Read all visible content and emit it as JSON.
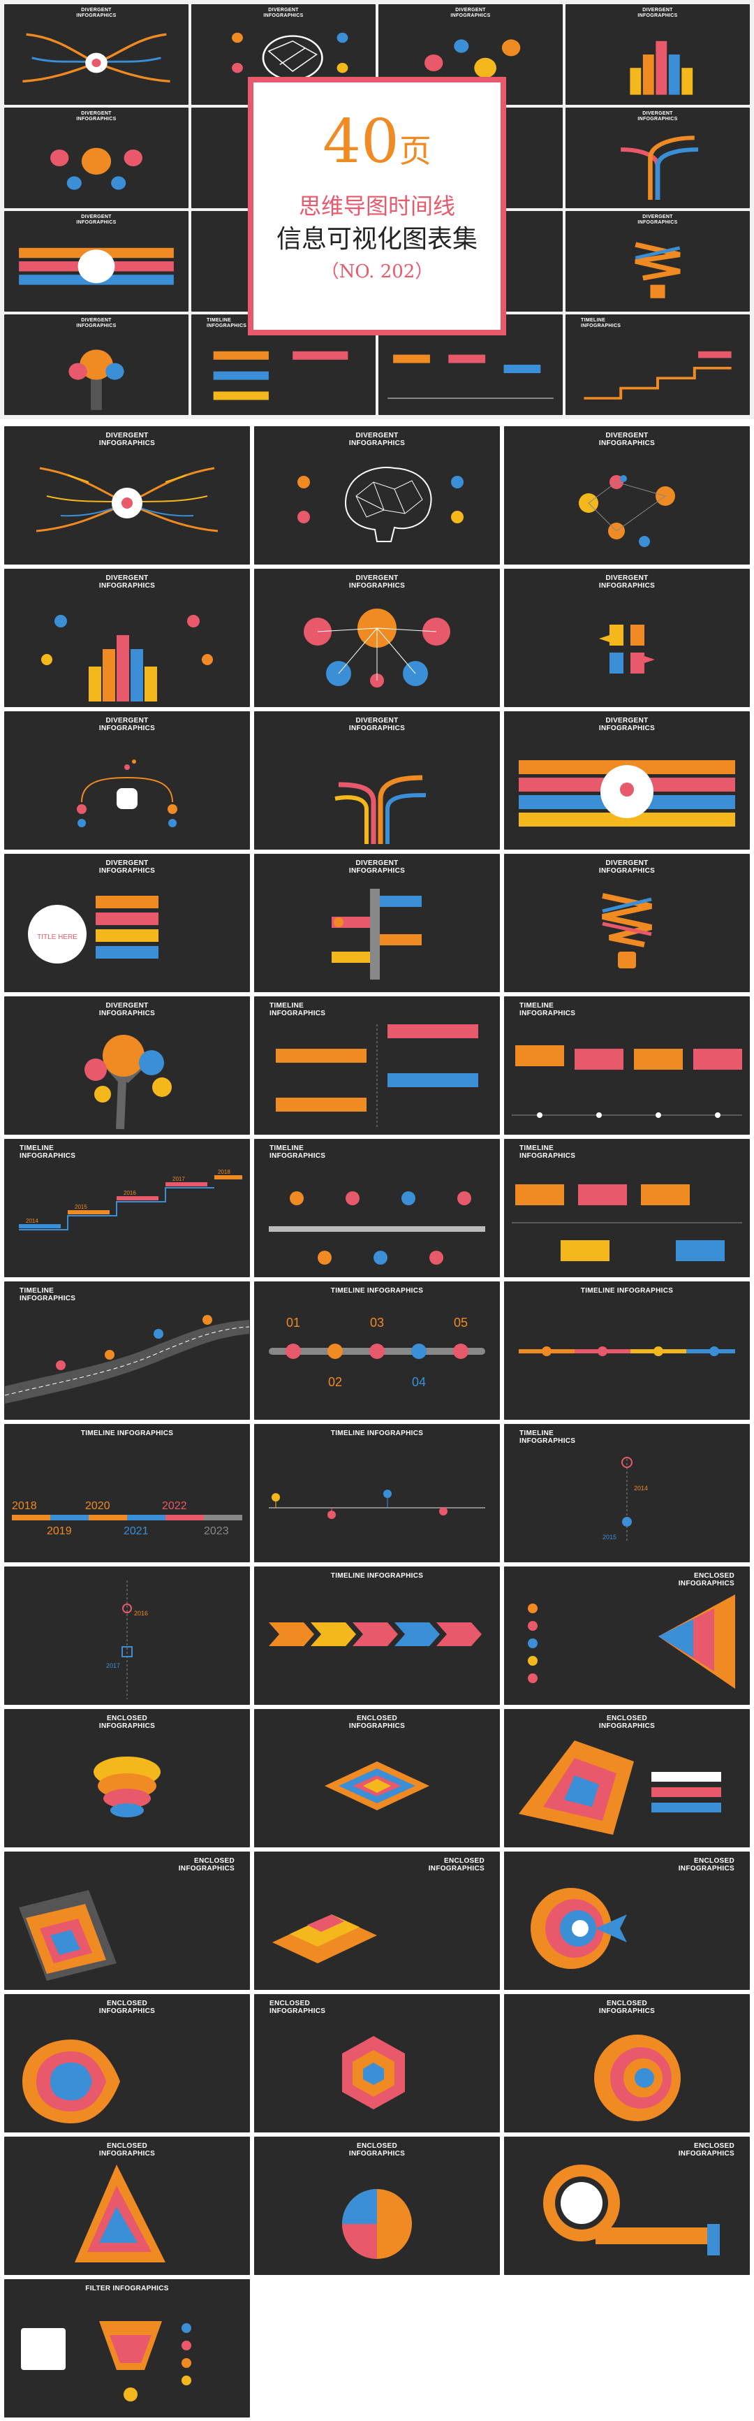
{
  "cover": {
    "number": "40",
    "unit": "页",
    "line1": "思维导图时间线",
    "line2": "信息可视化图表集",
    "line3": "（NO. 202）"
  },
  "titles": {
    "divergent": [
      "DIVERGENT",
      "INFOGRAPHICS"
    ],
    "timeline": [
      "TIMELINE",
      "INFOGRAPHICS"
    ],
    "timeline_one": "TIMELINE INFOGRAPHICS",
    "enclosed": [
      "ENCLOSED",
      "INFOGRAPHICS"
    ],
    "filter": "FILTER INFOGRAPHICS"
  },
  "years": {
    "a": [
      "2014",
      "2015",
      "2016",
      "2017",
      "2018"
    ],
    "b": [
      "2018",
      "2019",
      "2020",
      "2021",
      "2022",
      "2023"
    ],
    "c": [
      "2014",
      "2015",
      "2016",
      "2017"
    ]
  },
  "labels": {
    "title_here": "TITLE HERE",
    "numbers": [
      "01",
      "02",
      "03",
      "04",
      "05"
    ]
  },
  "colors": {
    "orange": "#f08a22",
    "red": "#e85a6b",
    "blue": "#3a8fd6",
    "yellow": "#f5b81c",
    "dark": "#2a2a2a"
  }
}
